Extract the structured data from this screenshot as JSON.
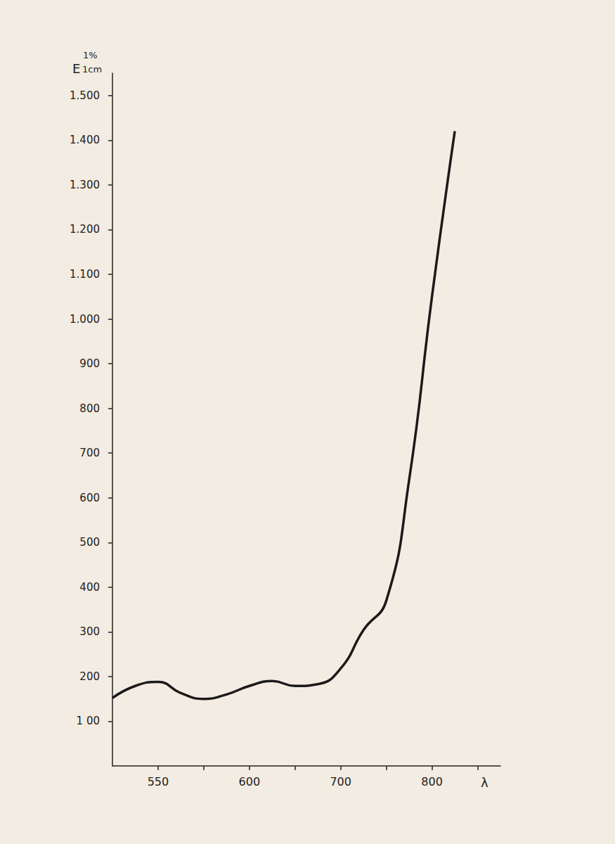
{
  "chart_data": {
    "type": "line",
    "y_label": {
      "main": "E",
      "sup": "1%",
      "sub": "1cm"
    },
    "x_label": "λ",
    "categories": [
      null,
      null,
      "550",
      null,
      null,
      null,
      "600",
      null,
      null,
      null,
      "700",
      null,
      null,
      null,
      "800",
      null,
      null,
      null
    ],
    "values": [
      152,
      179,
      188,
      163,
      150,
      160,
      179,
      190,
      179,
      183,
      218,
      304,
      370,
      640,
      1050,
      1420,
      null,
      null
    ],
    "color": "#1a1a1a",
    "line_style": "solid",
    "marker": "none",
    "ylim": [
      0,
      1550
    ],
    "yticks": [
      {
        "value": 100,
        "label": "1 00"
      },
      200,
      300,
      400,
      500,
      600,
      700,
      800,
      900,
      {
        "value": 1000,
        "label": "1.000"
      },
      {
        "value": 1100,
        "label": "1.100"
      },
      {
        "value": 1200,
        "label": "1.200"
      },
      {
        "value": 1300,
        "label": "1.300"
      },
      {
        "value": 1400,
        "label": "1.400"
      },
      {
        "value": 1500,
        "label": "1.500"
      }
    ],
    "grid": false
  }
}
